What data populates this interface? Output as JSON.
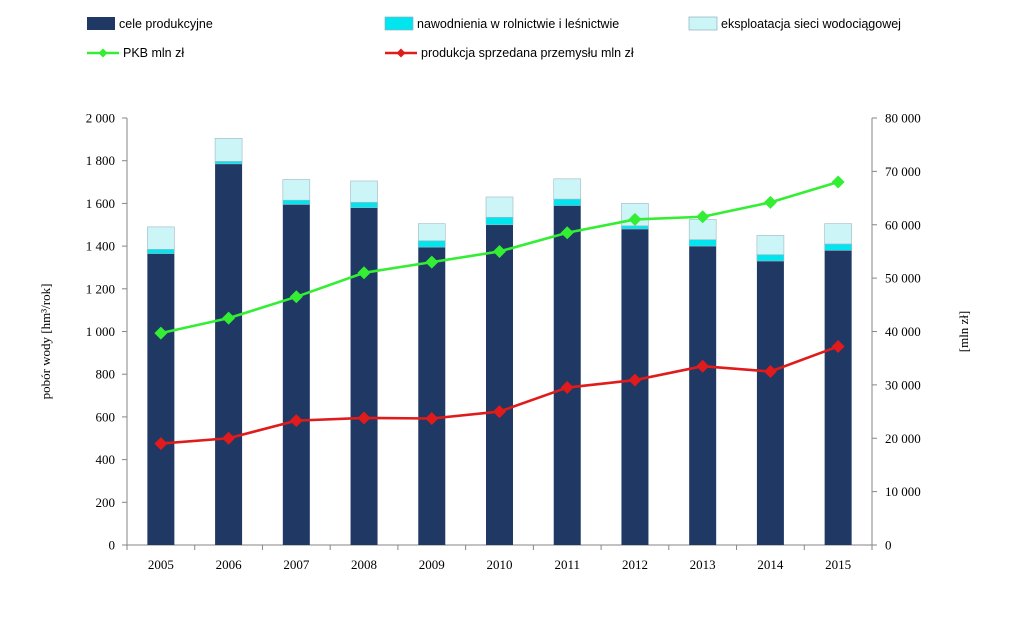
{
  "chart_data": {
    "type": "bar",
    "stacked": true,
    "categories": [
      "2005",
      "2006",
      "2007",
      "2008",
      "2009",
      "2010",
      "2011",
      "2012",
      "2013",
      "2014",
      "2015"
    ],
    "series": [
      {
        "name": "cele produkcyjne",
        "axis": "left",
        "color": "#1f3864",
        "values": [
          1365,
          1785,
          1595,
          1580,
          1395,
          1500,
          1590,
          1480,
          1400,
          1330,
          1380
        ]
      },
      {
        "name": "nawodnienia w rolnictwie i leśnictwie",
        "axis": "left",
        "color": "#00e5ee",
        "values": [
          20,
          12,
          20,
          25,
          30,
          35,
          30,
          15,
          30,
          30,
          30
        ]
      },
      {
        "name": "eksploatacja sieci wodociągowej",
        "axis": "left",
        "color": "#ccf5f7",
        "values": [
          105,
          108,
          97,
          100,
          80,
          95,
          95,
          105,
          95,
          90,
          95
        ]
      }
    ],
    "lines": [
      {
        "name": "PKB mln zł",
        "axis": "right",
        "color": "#33ee33",
        "marker": "diamond",
        "values": [
          39700,
          42500,
          46500,
          51000,
          53000,
          55000,
          58500,
          61000,
          61500,
          64200,
          68000
        ]
      },
      {
        "name": "produkcja sprzedana przemysłu mln zł",
        "axis": "right",
        "color": "#e01b1b",
        "marker": "diamond",
        "values": [
          19000,
          20000,
          23300,
          23800,
          23700,
          25000,
          29500,
          30900,
          33500,
          32500,
          37200
        ]
      }
    ],
    "left_axis": {
      "label": "pobór wody [hm³/rok]",
      "min": 0,
      "max": 2000,
      "step": 200,
      "tick_labels": [
        "0",
        "200",
        "400",
        "600",
        "800",
        "1 000",
        "1 200",
        "1 400",
        "1 600",
        "1 800",
        "2 000"
      ]
    },
    "right_axis": {
      "label": "[mln zł]",
      "min": 0,
      "max": 80000,
      "step": 10000,
      "tick_labels": [
        "0",
        "10 000",
        "20 000",
        "30 000",
        "40 000",
        "50 000",
        "60 000",
        "70 000",
        "80 000"
      ]
    },
    "legend": {
      "position": "top",
      "items": [
        {
          "label": "cele produkcyjne",
          "kind": "bar",
          "color": "#1f3864"
        },
        {
          "label": "nawodnienia w rolnictwie i leśnictwie",
          "kind": "bar",
          "color": "#00e5ee"
        },
        {
          "label": "eksploatacja sieci wodociągowej",
          "kind": "bar",
          "color": "#ccf5f7"
        },
        {
          "label": "PKB mln zł",
          "kind": "line",
          "color": "#33ee33"
        },
        {
          "label": "produkcja sprzedana przemysłu mln zł",
          "kind": "line",
          "color": "#e01b1b"
        }
      ]
    },
    "grid": false
  }
}
